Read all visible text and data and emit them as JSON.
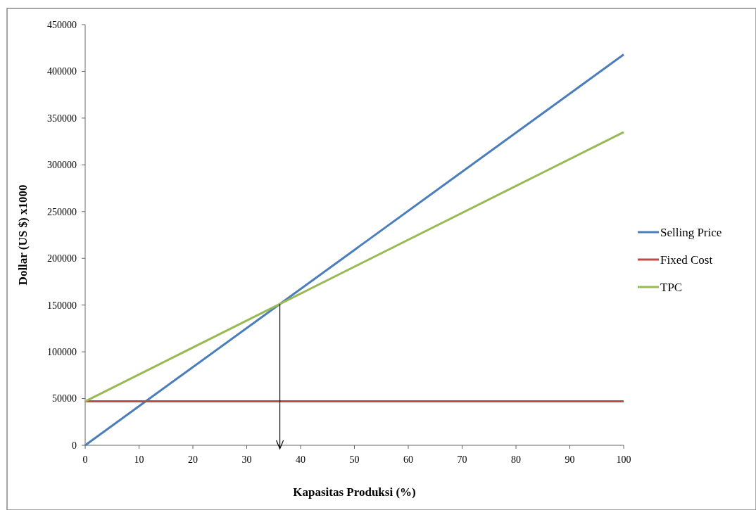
{
  "chart_data": {
    "type": "line",
    "xlabel": "Kapasitas Produksi (%)",
    "ylabel": "Dollar (US $) x1000",
    "x": [
      0,
      100
    ],
    "series": [
      {
        "name": "Selling Price",
        "color": "#4a7ebb",
        "values": [
          0,
          418000
        ]
      },
      {
        "name": "Fixed Cost",
        "color": "#be4b48",
        "values": [
          47000,
          47000
        ]
      },
      {
        "name": "TPC",
        "color": "#98b954",
        "values": [
          47000,
          335000
        ]
      }
    ],
    "xlim": [
      0,
      100
    ],
    "xticks": [
      0,
      10,
      20,
      30,
      40,
      50,
      60,
      70,
      80,
      90,
      100
    ],
    "ylim": [
      0,
      450000
    ],
    "yticks": [
      0,
      50000,
      100000,
      150000,
      200000,
      250000,
      300000,
      350000,
      400000,
      450000
    ],
    "grid": false,
    "legend": "right",
    "marker": "none",
    "line_style": "solid"
  }
}
